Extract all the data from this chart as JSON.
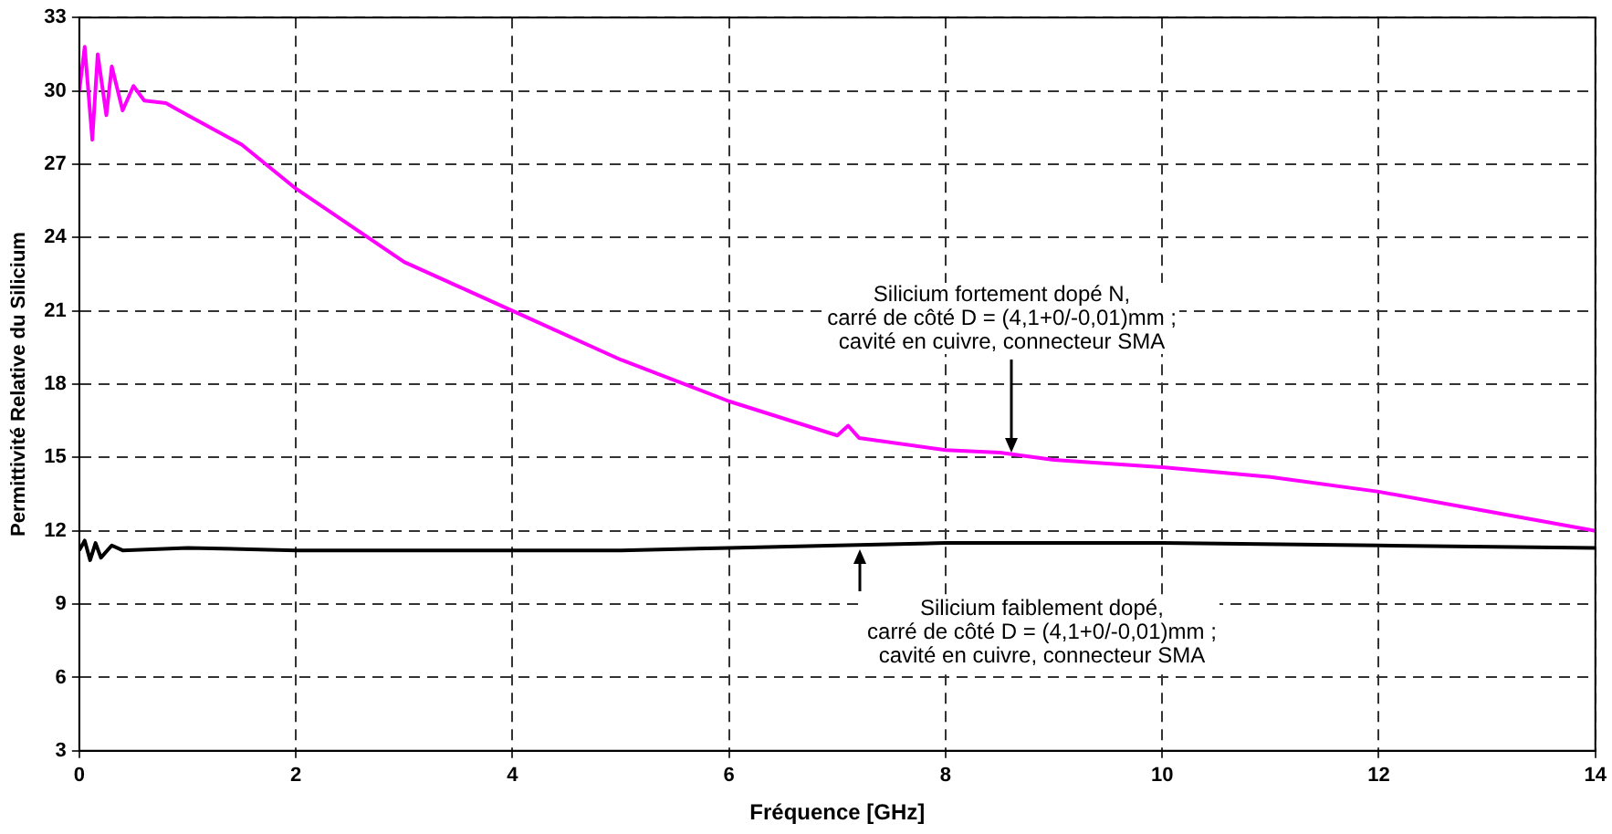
{
  "chart_data": {
    "type": "line",
    "xlabel": "Fréquence [GHz]",
    "ylabel": "Permittivité Relative du Silicium",
    "xlim": [
      0,
      14
    ],
    "xticks": [
      0,
      2,
      4,
      6,
      8,
      10,
      12,
      14
    ],
    "ylim": [
      3,
      33
    ],
    "yticks": [
      3,
      6,
      9,
      12,
      15,
      18,
      21,
      24,
      27,
      30,
      33
    ],
    "grid": true,
    "legend": false,
    "marker": "none",
    "line_style": "solid",
    "series": [
      {
        "color": "#ff00ff",
        "x": [
          0,
          0.05,
          0.12,
          0.17,
          0.25,
          0.3,
          0.4,
          0.5,
          0.6,
          0.8,
          1,
          1.5,
          2,
          2.5,
          3,
          3.5,
          4,
          5,
          6,
          7,
          7.1,
          7.2,
          8,
          8.5,
          9,
          10,
          11,
          12,
          13,
          14
        ],
        "values": [
          30,
          31.8,
          28,
          31.5,
          29,
          31,
          29.2,
          30.2,
          29.6,
          29.5,
          29,
          27.8,
          26,
          24.5,
          23,
          22,
          21,
          19,
          17.3,
          15.9,
          16.3,
          15.8,
          15.3,
          15.2,
          14.9,
          14.6,
          14.2,
          13.6,
          12.8,
          12
        ]
      },
      {
        "color": "#000000",
        "x": [
          0,
          0.05,
          0.1,
          0.15,
          0.2,
          0.3,
          0.4,
          1,
          2,
          4,
          5,
          6,
          7,
          8,
          10,
          12,
          14
        ],
        "values": [
          11.2,
          11.6,
          10.8,
          11.5,
          10.9,
          11.4,
          11.2,
          11.3,
          11.2,
          11.2,
          11.2,
          11.3,
          11.4,
          11.5,
          11.5,
          11.4,
          11.3
        ]
      }
    ],
    "annotations": [
      {
        "text": "Silicium fortement dopé N,\ncarré de côté D = (4,1+0/-0,01)mm ;\ncavité en cuivre, connecteur SMA",
        "x": 8.6,
        "y": 15.1
      },
      {
        "text": "Silicium faiblement dopé,\ncarré de côté D = (4,1+0/-0,01)mm ;\ncavité en cuivre, connecteur SMA",
        "x": 7.2,
        "y": 11.4
      }
    ]
  }
}
